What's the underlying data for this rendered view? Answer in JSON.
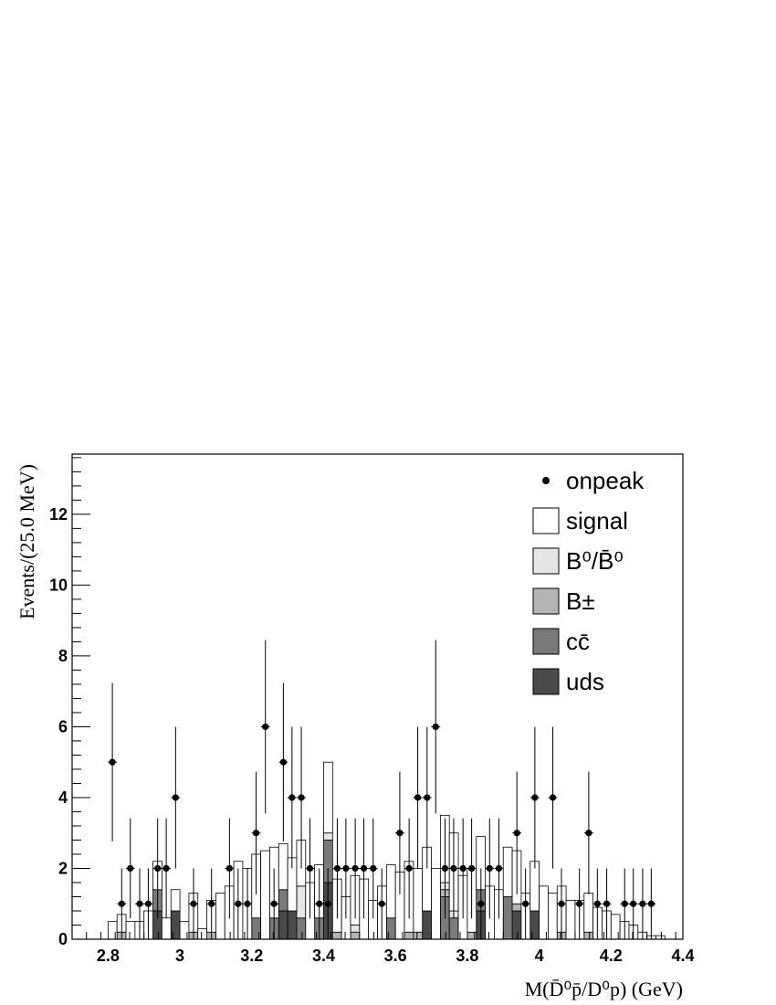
{
  "chart_data": {
    "type": "bar",
    "title": "",
    "xlabel": "M(D̄⁰p̄/D⁰p) (GeV)",
    "ylabel": "Events/(25.0 MeV)",
    "xlim": [
      2.7,
      4.4
    ],
    "ylim": [
      0,
      13.7
    ],
    "x_ticks": [
      "2.8",
      "3",
      "3.2",
      "3.4",
      "3.6",
      "3.8",
      "4",
      "4.2",
      "4.4"
    ],
    "y_ticks": [
      "0",
      "2",
      "4",
      "6",
      "8",
      "10",
      "12"
    ],
    "legend_position": "top-right",
    "bin_width": 0.025,
    "bin_lows": [
      2.8,
      2.825,
      2.85,
      2.875,
      2.9,
      2.925,
      2.95,
      2.975,
      3.0,
      3.025,
      3.05,
      3.075,
      3.1,
      3.125,
      3.15,
      3.175,
      3.2,
      3.225,
      3.25,
      3.275,
      3.3,
      3.325,
      3.35,
      3.375,
      3.4,
      3.425,
      3.45,
      3.475,
      3.5,
      3.525,
      3.55,
      3.575,
      3.6,
      3.625,
      3.65,
      3.675,
      3.7,
      3.725,
      3.75,
      3.775,
      3.8,
      3.825,
      3.85,
      3.875,
      3.9,
      3.925,
      3.95,
      3.975,
      4.0,
      4.025,
      4.05,
      4.075,
      4.1,
      4.125,
      4.15,
      4.175,
      4.2,
      4.225,
      4.25,
      4.275,
      4.3,
      4.325
    ],
    "legend": [
      {
        "label": "onpeak",
        "marker": "point",
        "color": "#000000"
      },
      {
        "label": "signal",
        "marker": "box",
        "color": "#ffffff"
      },
      {
        "label": "B⁰/B̄⁰",
        "marker": "box",
        "color": "#e6e6e6"
      },
      {
        "label": "B±",
        "marker": "box",
        "color": "#b4b4b4"
      },
      {
        "label": "cc̄",
        "marker": "box",
        "color": "#7a7a7a"
      },
      {
        "label": "uds",
        "marker": "box",
        "color": "#4a4a4a"
      }
    ],
    "series": [
      {
        "name": "uds",
        "color": "#4a4a4a",
        "values": [
          0,
          0,
          0,
          0,
          0,
          0.8,
          0,
          0.8,
          0,
          0,
          0,
          0,
          0,
          0,
          0,
          0,
          0,
          0,
          0,
          0.8,
          0.8,
          0,
          0,
          0,
          1.6,
          0,
          0,
          0,
          0,
          0,
          0,
          0,
          0,
          0,
          0,
          0.8,
          0,
          0,
          0,
          0,
          0,
          0.8,
          0,
          0,
          0,
          0.8,
          0,
          0.8,
          0,
          0,
          0,
          0,
          0,
          0,
          0,
          0,
          0,
          0,
          0,
          0,
          0,
          0
        ]
      },
      {
        "name": "cc̄",
        "color": "#7a7a7a",
        "values": [
          0,
          0,
          0,
          0,
          0,
          0.6,
          0,
          0,
          0,
          0,
          0,
          0,
          0,
          0,
          0,
          0,
          0.6,
          0,
          0.6,
          0.6,
          0,
          0.6,
          0,
          0.6,
          1.2,
          0,
          0,
          0,
          0,
          0,
          0,
          0.6,
          0,
          0,
          0,
          0,
          0,
          1.2,
          0.6,
          0,
          0,
          0.6,
          0,
          0,
          1.2,
          0,
          0,
          0,
          0,
          0,
          0,
          0,
          0,
          0,
          0,
          0,
          0,
          0,
          0,
          0,
          0,
          0
        ]
      },
      {
        "name": "B±",
        "color": "#b4b4b4",
        "values": [
          0,
          0.2,
          0,
          0,
          0,
          0,
          0,
          0,
          0,
          0.2,
          0,
          0.2,
          0,
          0,
          0,
          0,
          0,
          0,
          0,
          0,
          0,
          0,
          0,
          0,
          0,
          0.2,
          0,
          0.2,
          0,
          0,
          0,
          0,
          0,
          0.2,
          0.2,
          0,
          0,
          0.2,
          0,
          0,
          0.2,
          0,
          0,
          0,
          0,
          0.2,
          0,
          0,
          0,
          0,
          0.2,
          0,
          0,
          0.2,
          0,
          0,
          0,
          0,
          0,
          0,
          0,
          0
        ]
      },
      {
        "name": "B⁰/B̄⁰",
        "color": "#e6e6e6",
        "values": [
          0,
          0,
          0,
          0,
          0,
          0,
          0,
          0,
          0,
          0,
          0,
          0,
          0,
          0,
          0,
          0,
          0,
          0,
          0,
          0,
          0,
          0.9,
          0,
          0,
          0.2,
          0,
          0,
          0.2,
          0,
          0,
          0,
          0,
          0,
          0,
          0,
          0,
          0,
          0.2,
          0.2,
          0,
          0,
          0,
          0,
          0,
          0,
          0,
          0,
          0,
          0,
          0,
          0,
          0,
          0,
          0,
          0,
          0,
          0,
          0,
          0,
          0,
          0,
          0
        ]
      },
      {
        "name": "signal",
        "color": "#ffffff",
        "values": [
          0.5,
          0.5,
          0.5,
          0.5,
          0.8,
          0.8,
          0.6,
          0.6,
          0.5,
          1.1,
          0.3,
          0.9,
          1.3,
          1.5,
          2.2,
          2.0,
          1.8,
          2.5,
          2.0,
          1.3,
          1.5,
          1.3,
          1.6,
          1.5,
          2.0,
          1.5,
          1.2,
          1.4,
          1.7,
          1.1,
          1.5,
          1.5,
          1.9,
          2.0,
          1.8,
          1.8,
          2.0,
          1.9,
          2.2,
          1.8,
          1.8,
          1.5,
          1.5,
          1.4,
          1.4,
          1.5,
          1.3,
          1.4,
          1.5,
          1.3,
          1.3,
          1.1,
          1.1,
          1.1,
          0.9,
          0.8,
          0.7,
          0.5,
          0.4,
          0.2,
          0.1,
          0.1
        ]
      }
    ],
    "onpeak": {
      "x": [
        2.812,
        2.838,
        2.862,
        2.888,
        2.912,
        2.938,
        2.962,
        2.988,
        3.038,
        3.088,
        3.138,
        3.162,
        3.188,
        3.212,
        3.238,
        3.262,
        3.288,
        3.312,
        3.338,
        3.362,
        3.388,
        3.412,
        3.438,
        3.462,
        3.488,
        3.512,
        3.538,
        3.562,
        3.612,
        3.638,
        3.662,
        3.688,
        3.712,
        3.738,
        3.762,
        3.788,
        3.812,
        3.838,
        3.862,
        3.888,
        3.938,
        3.962,
        3.988,
        4.038,
        4.062,
        4.112,
        4.138,
        4.162,
        4.188,
        4.238,
        4.262,
        4.288,
        4.312
      ],
      "y": [
        5,
        1,
        2,
        1,
        1,
        2,
        2,
        4,
        1,
        1,
        2,
        1,
        1,
        3,
        6,
        1,
        5,
        4,
        4,
        2,
        1,
        1,
        2,
        2,
        2,
        2,
        2,
        1,
        3,
        2,
        4,
        4,
        6,
        2,
        2,
        2,
        2,
        1,
        2,
        2,
        3,
        1,
        4,
        4,
        1,
        1,
        3,
        1,
        1,
        1,
        1,
        1,
        1
      ]
    }
  }
}
